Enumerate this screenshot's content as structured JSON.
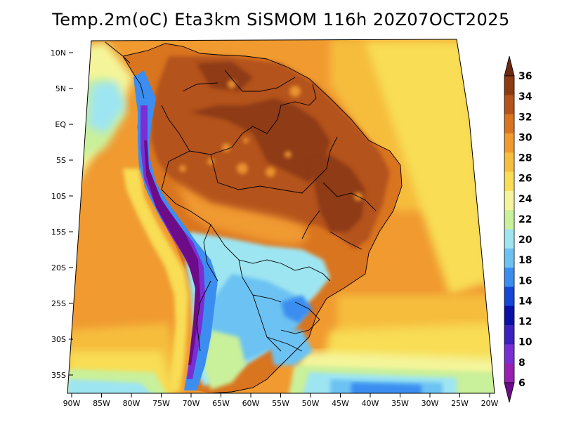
{
  "title": "Temp.2m(oC) Eta3km SiSMOM 116h 20Z07OCT2025",
  "map": {
    "lat_labels": [
      "10N",
      "5N",
      "EQ",
      "5S",
      "10S",
      "15S",
      "20S",
      "25S",
      "30S",
      "35S"
    ],
    "lon_labels": [
      "90W",
      "85W",
      "80W",
      "75W",
      "70W",
      "65W",
      "60W",
      "55W",
      "50W",
      "45W",
      "40W",
      "35W",
      "30W",
      "25W",
      "20W"
    ],
    "variable": "2 m temperature",
    "unit": "oC"
  },
  "colorbar": {
    "labels": [
      "36",
      "34",
      "32",
      "30",
      "28",
      "26",
      "24",
      "22",
      "20",
      "18",
      "16",
      "14",
      "12",
      "10",
      "8",
      "6"
    ],
    "colors": [
      "#6b2a0f",
      "#8e3b12",
      "#b4531a",
      "#d9741f",
      "#f09a30",
      "#f6bd3e",
      "#f8dd55",
      "#f4f59a",
      "#c9f09a",
      "#9ee5f2",
      "#6cc2f2",
      "#3b8ef0",
      "#1446d9",
      "#0a0fa8",
      "#3e1fbf",
      "#7a2fd4",
      "#9a20b4",
      "#6c0c88"
    ]
  }
}
